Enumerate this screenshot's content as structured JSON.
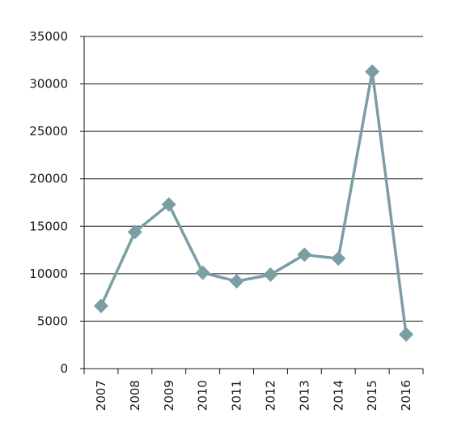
{
  "chart_data": {
    "type": "line",
    "title": "",
    "xlabel": "",
    "ylabel": "",
    "categories": [
      "2007",
      "2008",
      "2009",
      "2010",
      "2011",
      "2012",
      "2013",
      "2014",
      "2015",
      "2016"
    ],
    "series": [
      {
        "values": [
          6600,
          14400,
          17300,
          10100,
          9200,
          9900,
          12000,
          11600,
          31300,
          3600
        ],
        "color": "#7a9ea3",
        "marker": "diamond"
      }
    ],
    "ylim": [
      0,
      35000
    ],
    "yticks": [
      "0",
      "5000",
      "10000",
      "15000",
      "20000",
      "25000",
      "30000",
      "35000"
    ],
    "grid": "horizontal",
    "legend": "none",
    "x_tick_rotation": "vertical"
  }
}
